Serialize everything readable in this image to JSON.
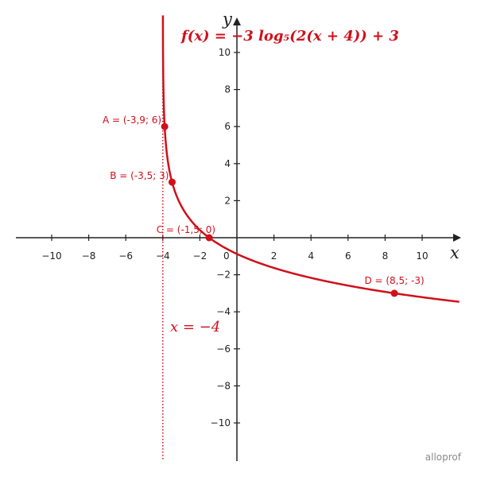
{
  "chart_data": {
    "type": "line",
    "title": "f(x) = −3 log₅(2(x + 4)) + 3",
    "xlabel": "x",
    "ylabel": "y",
    "xlim": [
      -12,
      12
    ],
    "ylim": [
      -12,
      12
    ],
    "grid": false,
    "x_ticks": [
      -10,
      -8,
      -6,
      -4,
      -2,
      2,
      4,
      6,
      8,
      10
    ],
    "y_ticks": [
      -10,
      -8,
      -6,
      -4,
      -2,
      2,
      4,
      6,
      8,
      10
    ],
    "x_tick_labels": [
      "−10",
      "−8",
      "−6",
      "−4",
      "−2",
      "2",
      "4",
      "6",
      "8",
      "10"
    ],
    "y_tick_labels": [
      "−10",
      "−8",
      "−6",
      "−4",
      "−2",
      "2",
      "4",
      "6",
      "8",
      "10"
    ],
    "origin_label": "0",
    "function": {
      "a": -3,
      "base": 5,
      "b": 2,
      "h": -4,
      "k": 3
    },
    "asymptote": {
      "x": -4,
      "label": "x = −4",
      "style": "dotted"
    },
    "points": [
      {
        "id": "A",
        "label": "A = (-3,9; 6)",
        "x": -3.9,
        "y": 6
      },
      {
        "id": "B",
        "label": "B = (-3,5; 3)",
        "x": -3.5,
        "y": 3
      },
      {
        "id": "C",
        "label": "C = (-1,5; 0)",
        "x": -1.5,
        "y": 0
      },
      {
        "id": "D",
        "label": "D = (8,5; -3)",
        "x": 8.5,
        "y": -3
      }
    ],
    "colors": {
      "curve": "#d0101b",
      "axes": "#222222"
    }
  },
  "watermark": "alloprof"
}
